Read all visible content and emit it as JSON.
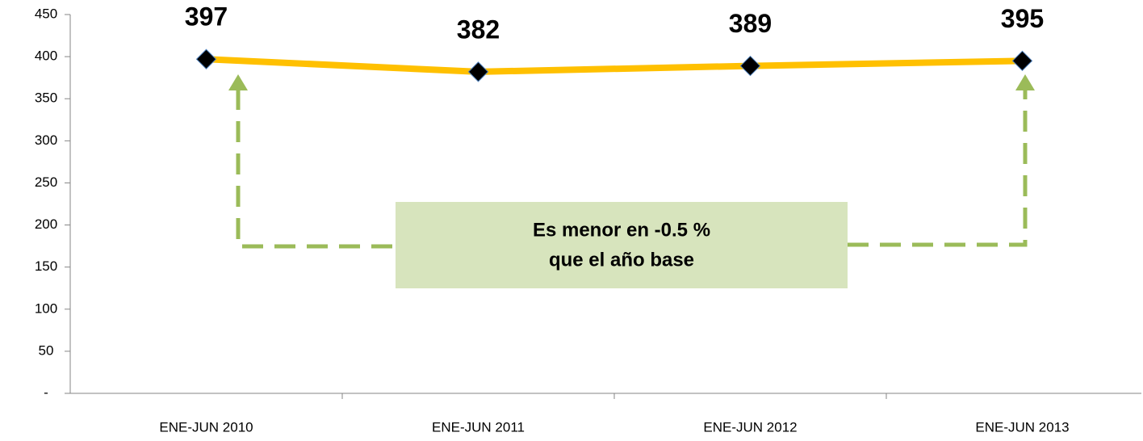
{
  "chart_data": {
    "type": "line",
    "categories": [
      "ENE-JUN 2010",
      "ENE-JUN 2011",
      "ENE-JUN 2012",
      "ENE-JUN 2013"
    ],
    "series": [
      {
        "color": "#ffc000",
        "values": [
          397,
          382,
          389,
          395
        ]
      }
    ],
    "ylim": [
      0,
      450
    ],
    "yticks": [
      {
        "value": 0,
        "label": "-"
      },
      50,
      100,
      150,
      200,
      250,
      300,
      350,
      400,
      450
    ],
    "annotation": [
      "Es menor en -0.5 %",
      "que el año base"
    ]
  }
}
